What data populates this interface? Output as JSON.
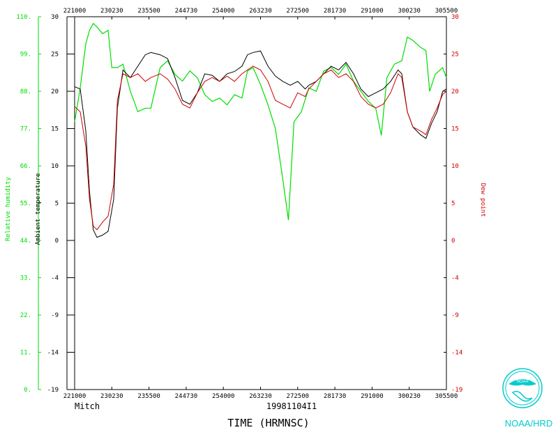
{
  "chart_data": {
    "type": "line",
    "xlabel": "TIME (HRMNSC)",
    "storm_name": "Mitch",
    "flight_id": "19981104I1",
    "credit": "NOAA/HRD",
    "x_ticks": [
      "221000",
      "230230",
      "235500",
      "244730",
      "254000",
      "263230",
      "272500",
      "281730",
      "291000",
      "300230",
      "305500"
    ],
    "xlim": [
      "221000",
      "305500"
    ],
    "axes": {
      "rh": {
        "label": "Relative humidity",
        "ticks": [
          "0.",
          "11.",
          "22.",
          "33.",
          "44.",
          "55.",
          "66.",
          "77.",
          "88.",
          "99.",
          "110."
        ],
        "ylim": [
          0,
          110
        ],
        "color": "#00dd00"
      },
      "temp": {
        "label": "Ambient temperature",
        "ticks": [
          "-19",
          "-14",
          "-9",
          "-4",
          "0",
          "5",
          "10",
          "15",
          "20",
          "25",
          "30"
        ],
        "ylim": [
          -19,
          30
        ],
        "color": "#000000"
      },
      "dew": {
        "label": "Dew point",
        "ticks": [
          "-19",
          "-14",
          "-9",
          "-4",
          "0",
          "5",
          "10",
          "15",
          "20",
          "25",
          "30"
        ],
        "ylim": [
          -19,
          30
        ],
        "color": "#cc0000"
      }
    },
    "series": [
      {
        "name": "Ambient temperature",
        "axis": "temp",
        "color": "#000000",
        "points": [
          [
            0,
            20.8
          ],
          [
            1.5,
            20.5
          ],
          [
            3,
            15
          ],
          [
            4,
            7
          ],
          [
            5,
            2
          ],
          [
            6,
            1
          ],
          [
            7.5,
            1.3
          ],
          [
            9,
            1.8
          ],
          [
            10.5,
            6
          ],
          [
            11.5,
            18
          ],
          [
            13,
            23
          ],
          [
            15,
            22
          ],
          [
            17,
            23.5
          ],
          [
            19,
            25
          ],
          [
            20.5,
            25.3
          ],
          [
            23,
            25
          ],
          [
            25,
            24.5
          ],
          [
            27,
            22
          ],
          [
            29,
            19
          ],
          [
            31,
            18.5
          ],
          [
            33,
            20
          ],
          [
            35,
            22.5
          ],
          [
            37,
            22.3
          ],
          [
            39,
            21.5
          ],
          [
            41,
            22.5
          ],
          [
            43,
            22.8
          ],
          [
            45,
            23.5
          ],
          [
            46.5,
            25
          ],
          [
            48,
            25.3
          ],
          [
            50,
            25.5
          ],
          [
            52,
            23.5
          ],
          [
            54,
            22.2
          ],
          [
            56,
            21.5
          ],
          [
            58,
            21
          ],
          [
            60,
            21.5
          ],
          [
            62,
            20.5
          ],
          [
            63,
            21
          ],
          [
            65,
            21.5
          ],
          [
            67,
            22.5
          ],
          [
            69,
            23.5
          ],
          [
            71,
            23
          ],
          [
            73,
            24
          ],
          [
            75,
            22.5
          ],
          [
            77,
            20.5
          ],
          [
            79,
            19.5
          ],
          [
            81,
            20
          ],
          [
            83,
            20.5
          ],
          [
            85,
            21.5
          ],
          [
            87,
            23
          ],
          [
            88,
            22.5
          ],
          [
            89.5,
            17.5
          ],
          [
            91,
            15.5
          ],
          [
            93,
            14.5
          ],
          [
            94.5,
            14
          ],
          [
            96,
            16
          ],
          [
            97.5,
            17.5
          ],
          [
            99,
            20.2
          ],
          [
            100,
            20.5
          ]
        ]
      },
      {
        "name": "Dew point",
        "axis": "dew",
        "color": "#cc0000",
        "points": [
          [
            0,
            18.2
          ],
          [
            1.5,
            17.5
          ],
          [
            3,
            13
          ],
          [
            4,
            6
          ],
          [
            5,
            2.5
          ],
          [
            6,
            2
          ],
          [
            7.5,
            3
          ],
          [
            9,
            3.8
          ],
          [
            10.5,
            8
          ],
          [
            11.5,
            19
          ],
          [
            13,
            22.5
          ],
          [
            15,
            22
          ],
          [
            17,
            22.5
          ],
          [
            19,
            21.5
          ],
          [
            20.5,
            22
          ],
          [
            23,
            22.5
          ],
          [
            25,
            21.8
          ],
          [
            27,
            20.5
          ],
          [
            29,
            18.5
          ],
          [
            31,
            18
          ],
          [
            33,
            20
          ],
          [
            35,
            21.5
          ],
          [
            37,
            22
          ],
          [
            39,
            21.5
          ],
          [
            41,
            22.2
          ],
          [
            43,
            21.5
          ],
          [
            45,
            22.5
          ],
          [
            46.5,
            23
          ],
          [
            48,
            23.5
          ],
          [
            50,
            23
          ],
          [
            52,
            21.5
          ],
          [
            54,
            19
          ],
          [
            56,
            18.5
          ],
          [
            58,
            18
          ],
          [
            60,
            20
          ],
          [
            62,
            19.5
          ],
          [
            63,
            20.5
          ],
          [
            65,
            21.5
          ],
          [
            67,
            22.5
          ],
          [
            69,
            23
          ],
          [
            71,
            22
          ],
          [
            73,
            22.5
          ],
          [
            75,
            21.5
          ],
          [
            77,
            19.5
          ],
          [
            79,
            18.5
          ],
          [
            81,
            18
          ],
          [
            83,
            18.5
          ],
          [
            85,
            20
          ],
          [
            87,
            22.5
          ],
          [
            88,
            22
          ],
          [
            89.5,
            17.5
          ],
          [
            91,
            15.5
          ],
          [
            93,
            15
          ],
          [
            94.5,
            14.5
          ],
          [
            96,
            16.5
          ],
          [
            97.5,
            18
          ],
          [
            99,
            19.8
          ],
          [
            100,
            20.2
          ]
        ]
      },
      {
        "name": "Relative humidity",
        "axis": "rh",
        "color": "#00dd00",
        "points": [
          [
            0,
            79
          ],
          [
            1.5,
            89
          ],
          [
            3,
            102
          ],
          [
            4,
            106
          ],
          [
            5,
            108
          ],
          [
            6,
            107
          ],
          [
            7.5,
            105
          ],
          [
            9,
            106
          ],
          [
            10,
            95
          ],
          [
            11.5,
            95
          ],
          [
            13,
            96
          ],
          [
            15,
            88
          ],
          [
            17,
            82
          ],
          [
            19,
            83
          ],
          [
            20.5,
            83
          ],
          [
            23,
            95
          ],
          [
            25,
            97
          ],
          [
            27,
            93
          ],
          [
            29,
            91
          ],
          [
            31,
            94
          ],
          [
            33,
            92
          ],
          [
            35,
            87
          ],
          [
            37,
            85
          ],
          [
            39,
            86
          ],
          [
            41,
            84
          ],
          [
            43,
            87
          ],
          [
            45,
            86
          ],
          [
            46.5,
            94
          ],
          [
            48,
            95
          ],
          [
            50,
            90
          ],
          [
            52,
            84
          ],
          [
            54,
            77
          ],
          [
            56,
            62
          ],
          [
            57.5,
            50
          ],
          [
            59,
            79
          ],
          [
            61,
            82
          ],
          [
            63,
            89
          ],
          [
            65,
            88
          ],
          [
            67,
            94
          ],
          [
            69,
            95
          ],
          [
            71,
            93
          ],
          [
            73,
            96
          ],
          [
            75,
            91
          ],
          [
            77,
            88
          ],
          [
            79,
            85
          ],
          [
            81,
            83
          ],
          [
            82.5,
            75
          ],
          [
            84,
            92
          ],
          [
            86,
            96
          ],
          [
            88,
            97
          ],
          [
            89.5,
            104
          ],
          [
            91,
            103
          ],
          [
            93,
            101
          ],
          [
            94.5,
            100
          ],
          [
            95.5,
            88
          ],
          [
            97,
            93
          ],
          [
            99,
            95
          ],
          [
            100,
            92
          ]
        ]
      }
    ]
  }
}
